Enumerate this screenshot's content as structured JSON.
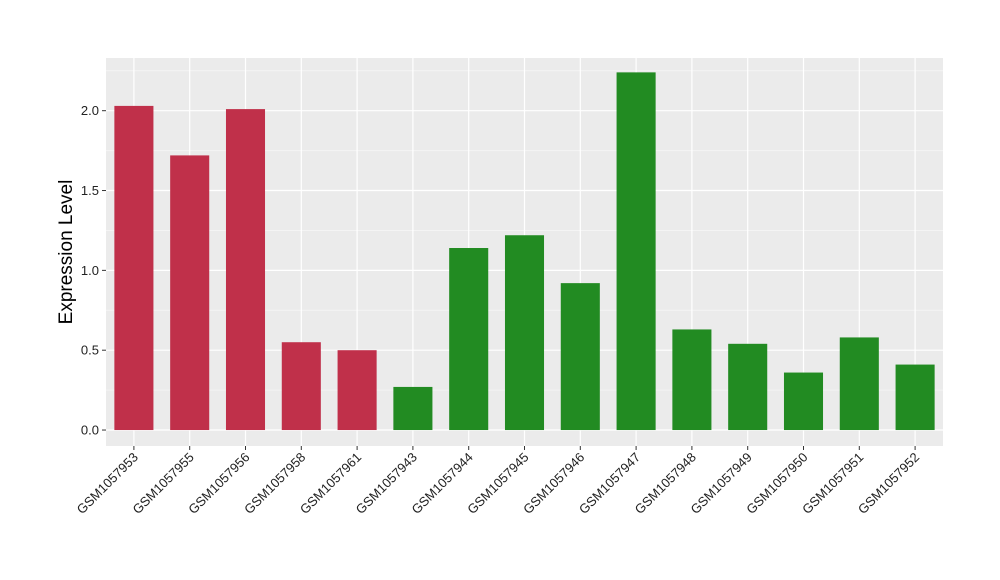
{
  "chart_data": {
    "type": "bar",
    "title": "",
    "xlabel": "",
    "ylabel": "Expression Level",
    "ylim": [
      -0.1,
      2.33
    ],
    "yticks": [
      0.0,
      0.5,
      1.0,
      1.5,
      2.0
    ],
    "ytick_labels": [
      "0.0",
      "0.5",
      "1.0",
      "1.5",
      "2.0"
    ],
    "grid": true,
    "legend": "none",
    "categories": [
      "GSM1057953",
      "GSM1057955",
      "GSM1057956",
      "GSM1057958",
      "GSM1057961",
      "GSM1057943",
      "GSM1057944",
      "GSM1057945",
      "GSM1057946",
      "GSM1057947",
      "GSM1057948",
      "GSM1057949",
      "GSM1057950",
      "GSM1057951",
      "GSM1057952"
    ],
    "values": [
      2.03,
      1.72,
      2.01,
      0.55,
      0.5,
      0.27,
      1.14,
      1.22,
      0.92,
      2.24,
      0.63,
      0.54,
      0.36,
      0.58,
      0.41
    ],
    "bar_colors": [
      "#c0304a",
      "#c0304a",
      "#c0304a",
      "#c0304a",
      "#c0304a",
      "#228b22",
      "#228b22",
      "#228b22",
      "#228b22",
      "#228b22",
      "#228b22",
      "#228b22",
      "#228b22",
      "#228b22",
      "#228b22"
    ]
  },
  "colors": {
    "panel_background": "#ebebeb",
    "grid_major": "#ffffff",
    "grid_minor": "#f4f4f4",
    "group_1": "#c0304a",
    "group_2": "#228b22"
  }
}
